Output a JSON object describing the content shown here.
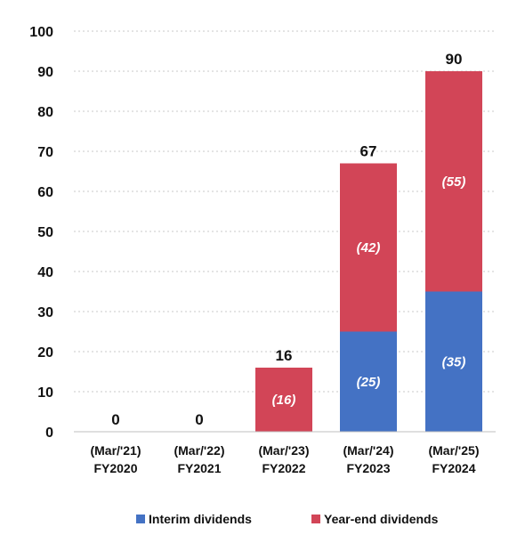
{
  "chart_data": {
    "type": "bar",
    "stacked": true,
    "categories": [
      [
        "(Mar/'21)",
        "FY2020"
      ],
      [
        "(Mar/'22)",
        "FY2021"
      ],
      [
        "(Mar/'23)",
        "FY2022"
      ],
      [
        "(Mar/'24)",
        "FY2023"
      ],
      [
        "(Mar/'25)",
        "FY2024"
      ]
    ],
    "series": [
      {
        "name": "Interim dividends",
        "color": "#4472c4",
        "values": [
          0,
          0,
          0,
          25,
          35
        ],
        "labels": [
          "",
          "",
          "",
          "(25)",
          "(35)"
        ]
      },
      {
        "name": "Year-end dividends",
        "color": "#d24557",
        "values": [
          0,
          0,
          16,
          42,
          55
        ],
        "labels": [
          "",
          "",
          "(16)",
          "(42)",
          "(55)"
        ]
      }
    ],
    "totals": [
      0,
      0,
      16,
      67,
      90
    ],
    "yticks": [
      0,
      10,
      20,
      30,
      40,
      50,
      60,
      70,
      80,
      90,
      100
    ],
    "ylim": [
      0,
      100
    ],
    "title": "",
    "xlabel": "",
    "ylabel": "",
    "grid": true,
    "legend_position": "bottom"
  }
}
